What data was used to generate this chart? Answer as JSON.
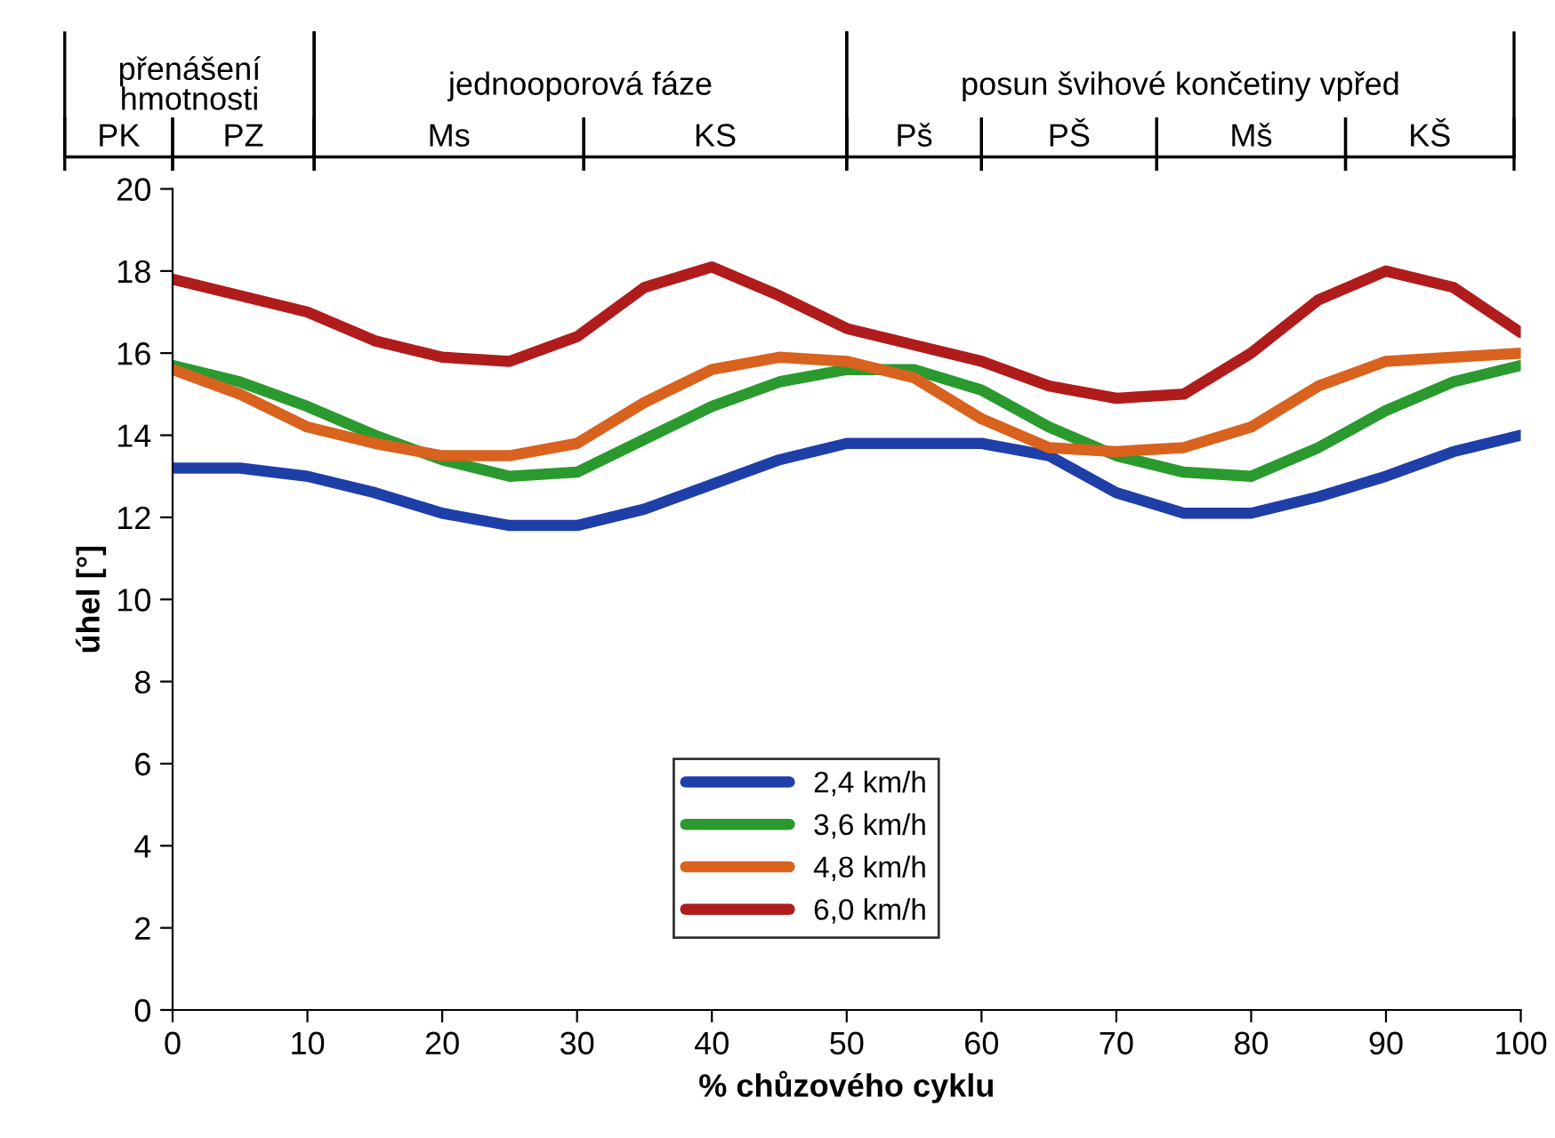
{
  "chart_data": {
    "type": "line",
    "xlabel": "% chůzového cyklu",
    "ylabel": "úhel [°]",
    "x": [
      0,
      5,
      10,
      15,
      20,
      25,
      30,
      35,
      40,
      45,
      50,
      55,
      60,
      65,
      70,
      75,
      80,
      85,
      90,
      95,
      100
    ],
    "series": [
      {
        "name": "2,4 km/h",
        "color": "#1f3fa8",
        "values": [
          13.2,
          13.2,
          13.0,
          12.6,
          12.1,
          11.8,
          11.8,
          12.2,
          12.8,
          13.4,
          13.8,
          13.8,
          13.8,
          13.5,
          12.6,
          12.1,
          12.1,
          12.5,
          13.0,
          13.6,
          14.0
        ]
      },
      {
        "name": "3,6 km/h",
        "color": "#2a9a2e",
        "values": [
          15.7,
          15.3,
          14.7,
          14.0,
          13.4,
          13.0,
          13.1,
          13.9,
          14.7,
          15.3,
          15.6,
          15.6,
          15.1,
          14.2,
          13.5,
          13.1,
          13.0,
          13.7,
          14.6,
          15.3,
          15.7
        ]
      },
      {
        "name": "4,8 km/h",
        "color": "#d9621e",
        "values": [
          15.6,
          15.0,
          14.2,
          13.8,
          13.5,
          13.5,
          13.8,
          14.8,
          15.6,
          15.9,
          15.8,
          15.4,
          14.4,
          13.7,
          13.6,
          13.7,
          14.2,
          15.2,
          15.8,
          15.9,
          16.0
        ]
      },
      {
        "name": "6,0 km/h",
        "color": "#b01c1c",
        "values": [
          17.8,
          17.4,
          17.0,
          16.3,
          15.9,
          15.8,
          16.4,
          17.6,
          18.1,
          17.4,
          16.6,
          16.2,
          15.8,
          15.2,
          14.9,
          15.0,
          16.0,
          17.3,
          18.0,
          17.6,
          16.5
        ]
      }
    ],
    "xlim": [
      0,
      100
    ],
    "xticks": [
      0,
      10,
      20,
      30,
      40,
      50,
      60,
      70,
      80,
      90,
      100
    ],
    "ylim": [
      0,
      20
    ],
    "yticks": [
      0,
      2,
      4,
      6,
      8,
      10,
      12,
      14,
      16,
      18,
      20
    ],
    "grid": false,
    "legend": "bottom",
    "marker": "none",
    "line_style": "solid",
    "annotations": [
      "přenášení\nhmotnosti",
      "jednooporová fáze",
      "posun švihové končetiny vpřed",
      "PK",
      "PZ",
      "Ms",
      "KS",
      "Pš",
      "PŠ",
      "Mš",
      "KŠ"
    ]
  }
}
